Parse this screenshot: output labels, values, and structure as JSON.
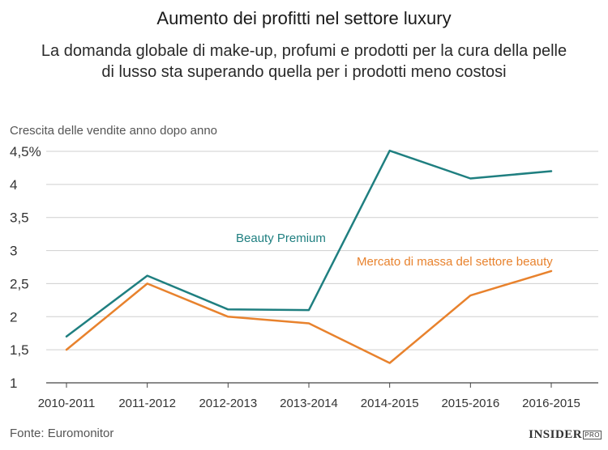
{
  "chart_data": {
    "type": "line",
    "title": "Aumento dei profitti nel settore luxury",
    "subtitle": [
      "La domanda globale di make-up, profumi e prodotti per la cura della pelle",
      "di lusso sta superando quella per i prodotti meno costosi"
    ],
    "ylabel": "Crescita delle vendite anno dopo anno",
    "xlabel": "",
    "categories": [
      "2010-2011",
      "2011-2012",
      "2012-2013",
      "2013-2014",
      "2014-2015",
      "2015-2016",
      "2016-2015"
    ],
    "ylim": [
      1,
      4.5
    ],
    "yticks": [
      1,
      1.5,
      2,
      2.5,
      3,
      3.5,
      4,
      4.5
    ],
    "ytick_labels": [
      "1",
      "1,5",
      "2",
      "2,5",
      "3",
      "3,5",
      "4",
      "4,5%"
    ],
    "grid": true,
    "series": [
      {
        "name": "Beauty Premium",
        "color": "#1f7f80",
        "values": [
          1.7,
          2.62,
          2.11,
          2.1,
          4.51,
          4.09,
          4.2
        ]
      },
      {
        "name": "Mercato di massa del settore beauty",
        "color": "#e8822d",
        "values": [
          1.5,
          2.5,
          2.0,
          1.9,
          1.3,
          2.32,
          2.69
        ]
      }
    ]
  },
  "footer": {
    "source": "Fonte: Euromonitor",
    "logo": "INSIDER",
    "logo_badge": "PRO"
  }
}
